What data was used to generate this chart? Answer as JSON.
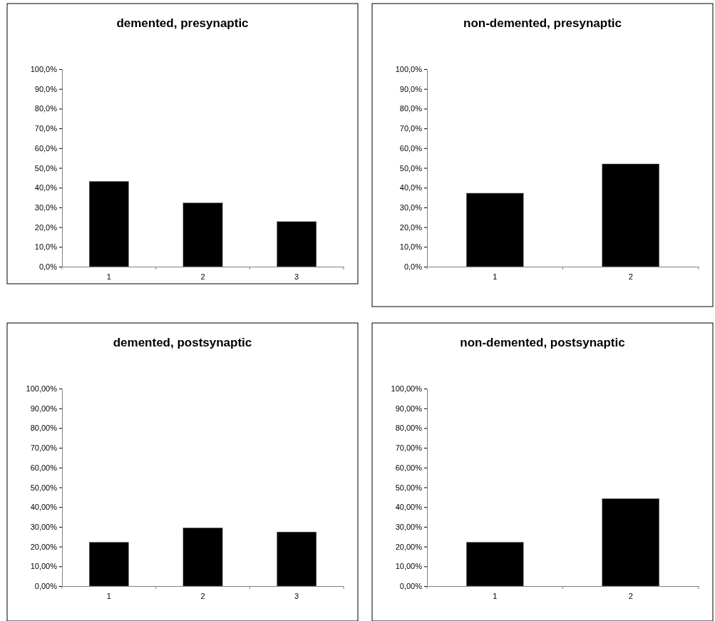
{
  "chart_data": [
    {
      "type": "bar",
      "title": "demented, presynaptic",
      "categories": [
        "1",
        "2",
        "3"
      ],
      "values": [
        43.2,
        32.3,
        22.8
      ],
      "color": "#000000",
      "ylim": [
        0,
        100
      ],
      "yticks": [
        {
          "value": 0,
          "label": "0,0%"
        },
        {
          "value": 10,
          "label": "10,0%"
        },
        {
          "value": 20,
          "label": "20,0%"
        },
        {
          "value": 30,
          "label": "30,0%"
        },
        {
          "value": 40,
          "label": "40,0%"
        },
        {
          "value": 50,
          "label": "50,0%"
        },
        {
          "value": 60,
          "label": "60,0%"
        },
        {
          "value": 70,
          "label": "70,0%"
        },
        {
          "value": 80,
          "label": "80,0%"
        },
        {
          "value": 90,
          "label": "90,0%"
        },
        {
          "value": 100,
          "label": "100,0%"
        }
      ]
    },
    {
      "type": "bar",
      "title": "non-demented, presynaptic",
      "categories": [
        "1",
        "2"
      ],
      "values": [
        37.2,
        52
      ],
      "color": "#000000",
      "ylim": [
        0,
        100
      ],
      "yticks": [
        {
          "value": 0,
          "label": "0,0%"
        },
        {
          "value": 10,
          "label": "10,0%"
        },
        {
          "value": 20,
          "label": "20,0%"
        },
        {
          "value": 30,
          "label": "30,0%"
        },
        {
          "value": 40,
          "label": "40,0%"
        },
        {
          "value": 50,
          "label": "50,0%"
        },
        {
          "value": 60,
          "label": "60,0%"
        },
        {
          "value": 70,
          "label": "70,0%"
        },
        {
          "value": 80,
          "label": "80,0%"
        },
        {
          "value": 90,
          "label": "90,0%"
        },
        {
          "value": 100,
          "label": "100,0%"
        }
      ]
    },
    {
      "type": "bar",
      "title": "demented, postsynaptic",
      "categories": [
        "1",
        "2",
        "3"
      ],
      "values": [
        22.2,
        29.5,
        27.4
      ],
      "color": "#000000",
      "ylim": [
        0,
        100
      ],
      "yticks": [
        {
          "value": 0,
          "label": "0,00%"
        },
        {
          "value": 10,
          "label": "10,00%"
        },
        {
          "value": 20,
          "label": "20,00%"
        },
        {
          "value": 30,
          "label": "30,00%"
        },
        {
          "value": 40,
          "label": "40,00%"
        },
        {
          "value": 50,
          "label": "50,00%"
        },
        {
          "value": 60,
          "label": "60,00%"
        },
        {
          "value": 70,
          "label": "70,00%"
        },
        {
          "value": 80,
          "label": "80,00%"
        },
        {
          "value": 90,
          "label": "90,00%"
        },
        {
          "value": 100,
          "label": "100,00%"
        }
      ]
    },
    {
      "type": "bar",
      "title": "non-demented, postsynaptic",
      "categories": [
        "1",
        "2"
      ],
      "values": [
        22.2,
        44.3
      ],
      "color": "#000000",
      "ylim": [
        0,
        100
      ],
      "yticks": [
        {
          "value": 0,
          "label": "0,00%"
        },
        {
          "value": 10,
          "label": "10,00%"
        },
        {
          "value": 20,
          "label": "20,00%"
        },
        {
          "value": 30,
          "label": "30,00%"
        },
        {
          "value": 40,
          "label": "40,00%"
        },
        {
          "value": 50,
          "label": "50,00%"
        },
        {
          "value": 60,
          "label": "60,00%"
        },
        {
          "value": 70,
          "label": "70,00%"
        },
        {
          "value": 80,
          "label": "80,00%"
        },
        {
          "value": 90,
          "label": "90,00%"
        },
        {
          "value": 100,
          "label": "100,00%"
        }
      ]
    }
  ]
}
